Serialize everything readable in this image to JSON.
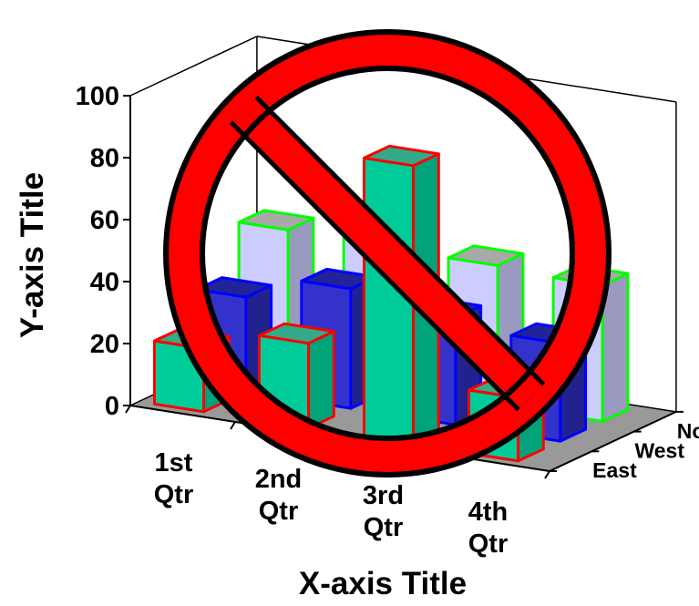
{
  "chart_data": {
    "type": "bar",
    "title": "",
    "xlabel": "X-axis Title",
    "ylabel": "Y-axis Title",
    "ylim": [
      0,
      100
    ],
    "yticks": [
      "0",
      "20",
      "40",
      "60",
      "80",
      "100"
    ],
    "categories": [
      "1st Qtr",
      "2nd Qtr",
      "3rd Qtr",
      "4th Qtr"
    ],
    "category_lines": [
      [
        "1st",
        "Qtr"
      ],
      [
        "2nd",
        "Qtr"
      ],
      [
        "3rd",
        "Qtr"
      ],
      [
        "4th",
        "Qtr"
      ]
    ],
    "series": [
      {
        "name": "East",
        "values": [
          20.4,
          27.4,
          90,
          20.4
        ],
        "fill": "#00cc99",
        "side": "#00a37a",
        "top": "#33aa88",
        "edge": "#ff0000"
      },
      {
        "name": "West",
        "values": [
          30.6,
          38.6,
          34.6,
          31.6
        ],
        "fill": "#3333cc",
        "side": "#22228f",
        "top": "#222299",
        "edge": "#0000ff"
      },
      {
        "name": "North",
        "values": [
          45.9,
          46.9,
          45,
          43.9
        ],
        "fill": "#ccccff",
        "side": "#9a9ac0",
        "top": "#a9a9a9",
        "edge": "#00ff00"
      }
    ],
    "depth_labels": [
      "North",
      "West",
      "East"
    ],
    "grid": false,
    "floor_color": "#999999",
    "overlay_symbol": {
      "type": "prohibition",
      "fill": "#ff0000",
      "outline": "#000000"
    }
  }
}
